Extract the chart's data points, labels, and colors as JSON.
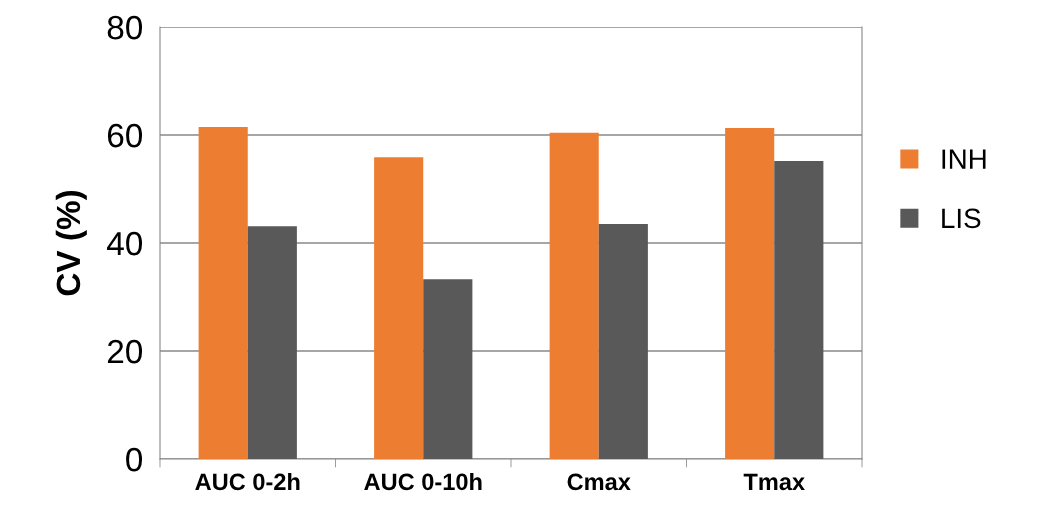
{
  "chart_data": {
    "type": "bar",
    "ylabel": "CV (%)",
    "categories": [
      "AUC 0-2h",
      "AUC 0-10h",
      "Cmax",
      "Tmax"
    ],
    "series": [
      {
        "name": "INH",
        "color": "#ed7d31",
        "values": [
          61.5,
          55.9,
          60.4,
          61.3
        ]
      },
      {
        "name": "LIS",
        "color": "#595959",
        "values": [
          43.1,
          33.3,
          43.5,
          55.2
        ]
      }
    ],
    "ylim": [
      0,
      80
    ],
    "yticks": [
      0,
      20,
      40,
      60,
      80
    ],
    "grid": "y",
    "legend": "right"
  }
}
